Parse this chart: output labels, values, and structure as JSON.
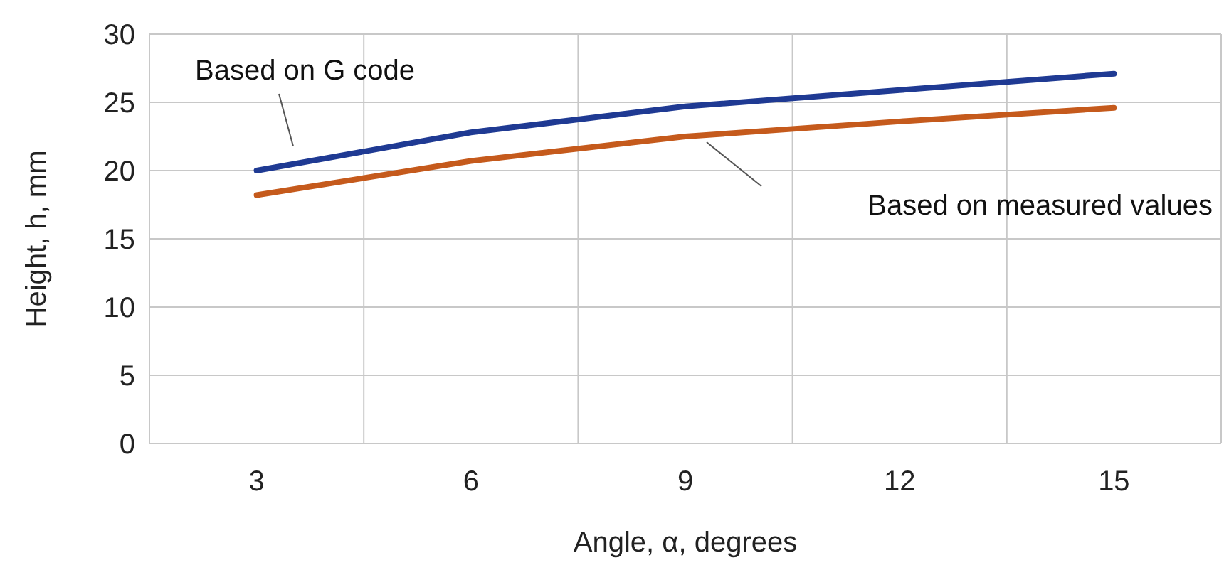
{
  "chart_data": {
    "type": "line",
    "xlabel": "Angle, α, degrees",
    "ylabel": "Height, h, mm",
    "categories": [
      "3",
      "6",
      "9",
      "12",
      "15"
    ],
    "ylim": [
      0,
      30
    ],
    "yticks": [
      0,
      5,
      10,
      15,
      20,
      25,
      30
    ],
    "grid": true,
    "legend": false,
    "marker": "none",
    "series": [
      {
        "name": "Based on G code",
        "color": "#1f3a93",
        "values": [
          20.0,
          22.8,
          24.7,
          25.9,
          27.1
        ]
      },
      {
        "name": "Based on measured values",
        "color": "#c55a1c",
        "values": [
          18.2,
          20.7,
          22.5,
          23.6,
          24.6
        ]
      }
    ]
  }
}
